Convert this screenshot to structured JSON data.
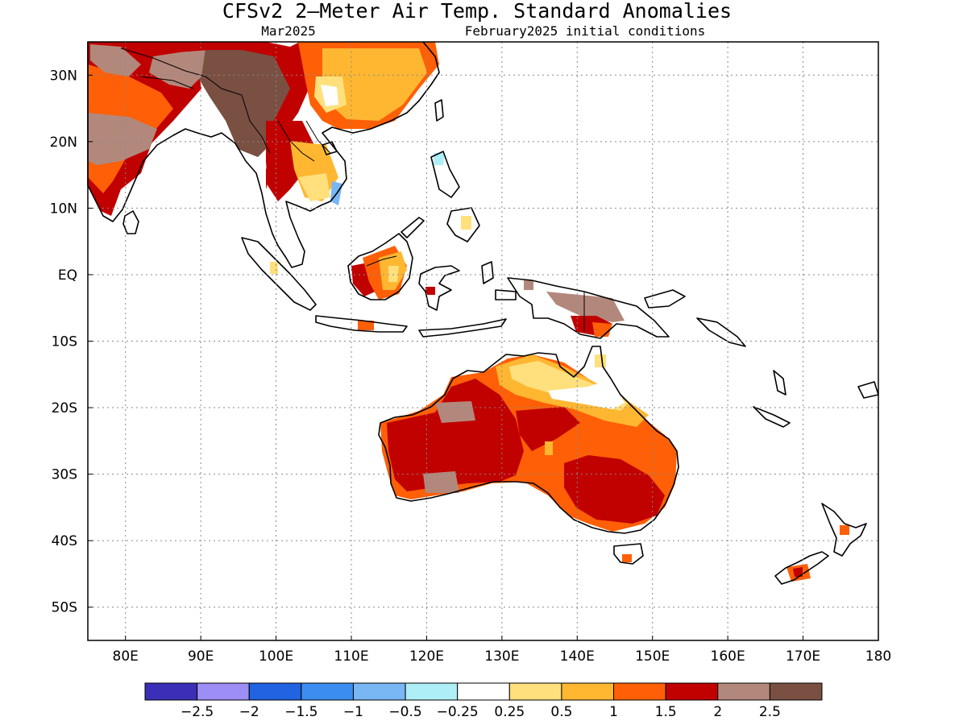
{
  "title": "CFSv2 2—Meter Air Temp. Standard Anomalies",
  "left_subtitle": "Mar2025",
  "right_subtitle": "February2025 initial conditions",
  "map": {
    "x_ticks": [
      "80E",
      "90E",
      "100E",
      "110E",
      "120E",
      "130E",
      "140E",
      "150E",
      "160E",
      "170E",
      "180"
    ],
    "y_ticks": [
      "30N",
      "20N",
      "10N",
      "EQ",
      "10S",
      "20S",
      "30S",
      "40S",
      "50S"
    ],
    "lon_values": [
      80,
      90,
      100,
      110,
      120,
      130,
      140,
      150,
      160,
      170,
      180
    ],
    "lat_values": [
      30,
      20,
      10,
      0,
      -10,
      -20,
      -30,
      -40,
      -50
    ],
    "lon_range": [
      75,
      180
    ],
    "lat_range": [
      -55,
      35
    ],
    "gridlines": "dotted"
  },
  "colorbar": {
    "labels": [
      "−2.5",
      "−2",
      "−1.5",
      "−1",
      "−0.5",
      "−0.25",
      "0.25",
      "0.5",
      "1",
      "1.5",
      "2",
      "2.5"
    ],
    "colors": [
      "#3b2fb8",
      "#9d8ef5",
      "#2163e0",
      "#3b8eef",
      "#78b6f4",
      "#aeeef6",
      "#ffffff",
      "#ffe07c",
      "#ffb732",
      "#ff5f06",
      "#c10000",
      "#b3887c",
      "#7a5043"
    ]
  }
}
